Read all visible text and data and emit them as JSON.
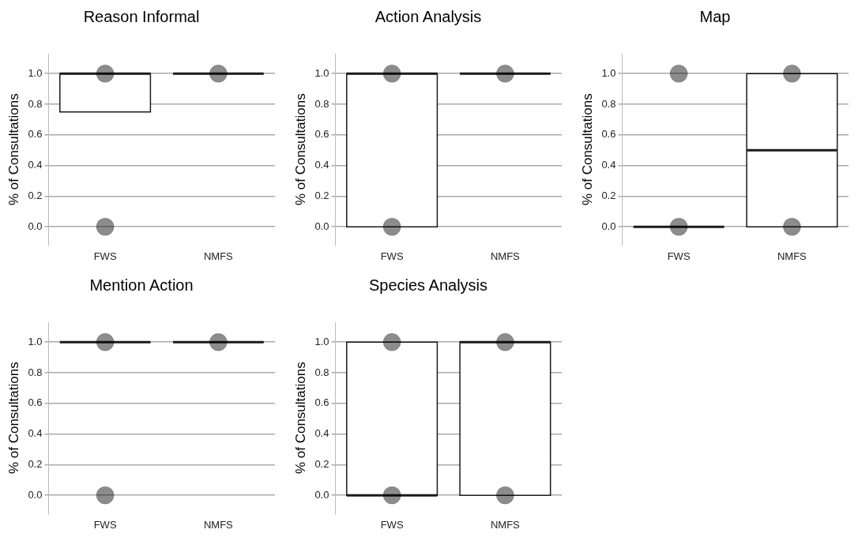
{
  "chart_data": [
    {
      "type": "box",
      "title": "Reason Informal",
      "ylabel": "% of Consultations",
      "categories": [
        "FWS",
        "NMFS"
      ],
      "ylim": [
        -0.12,
        1.13
      ],
      "yticks": [
        {
          "value": 0,
          "label": "0.0"
        },
        {
          "value": 0.2,
          "label": "0.2"
        },
        {
          "value": 0.4,
          "label": "0.4"
        },
        {
          "value": 0.6,
          "label": "0.6"
        },
        {
          "value": 0.8,
          "label": "0.8"
        },
        {
          "value": 1,
          "label": "1.0"
        }
      ],
      "grid": "y",
      "series": [
        {
          "type": "box",
          "colors": [
            "#ffffff",
            "#1a1a1a"
          ],
          "boxes": [
            {
              "low": 0.75,
              "q1": 0.75,
              "median": 1,
              "q3": 1,
              "high": 1
            },
            {
              "low": 1,
              "q1": 1,
              "median": 1,
              "q3": 1,
              "high": 1
            }
          ]
        },
        {
          "type": "scatter",
          "color": "#000000",
          "x": [
            "FWS",
            "FWS",
            "NMFS"
          ],
          "values": [
            1,
            0,
            1
          ]
        }
      ]
    },
    {
      "type": "box",
      "title": "Action Analysis",
      "ylabel": "% of Consultations",
      "categories": [
        "FWS",
        "NMFS"
      ],
      "ylim": [
        -0.12,
        1.13
      ],
      "yticks": [
        {
          "value": 0,
          "label": "0.0"
        },
        {
          "value": 0.2,
          "label": "0.2"
        },
        {
          "value": 0.4,
          "label": "0.4"
        },
        {
          "value": 0.6,
          "label": "0.6"
        },
        {
          "value": 0.8,
          "label": "0.8"
        },
        {
          "value": 1,
          "label": "1.0"
        }
      ],
      "grid": "y",
      "series": [
        {
          "type": "box",
          "colors": [
            "#ffffff",
            "#1a1a1a"
          ],
          "boxes": [
            {
              "low": 0,
              "q1": 0,
              "median": 1,
              "q3": 1,
              "high": 1
            },
            {
              "low": 1,
              "q1": 1,
              "median": 1,
              "q3": 1,
              "high": 1
            }
          ]
        },
        {
          "type": "scatter",
          "color": "#000000",
          "x": [
            "FWS",
            "FWS",
            "NMFS"
          ],
          "values": [
            1,
            0,
            1
          ]
        }
      ]
    },
    {
      "type": "box",
      "title": "Map",
      "ylabel": "% of Consultations",
      "categories": [
        "FWS",
        "NMFS"
      ],
      "ylim": [
        -0.12,
        1.13
      ],
      "yticks": [
        {
          "value": 0,
          "label": "0.0"
        },
        {
          "value": 0.2,
          "label": "0.2"
        },
        {
          "value": 0.4,
          "label": "0.4"
        },
        {
          "value": 0.6,
          "label": "0.6"
        },
        {
          "value": 0.8,
          "label": "0.8"
        },
        {
          "value": 1,
          "label": "1.0"
        }
      ],
      "grid": "y",
      "series": [
        {
          "type": "box",
          "colors": [
            "#1a1a1a",
            "#ffffff"
          ],
          "boxes": [
            {
              "low": 0,
              "q1": 0,
              "median": 0,
              "q3": 0,
              "high": 0
            },
            {
              "low": 0,
              "q1": 0,
              "median": 0.5,
              "q3": 1,
              "high": 1
            }
          ]
        },
        {
          "type": "scatter",
          "color": "#000000",
          "x": [
            "FWS",
            "FWS",
            "NMFS",
            "NMFS"
          ],
          "values": [
            1,
            0,
            1,
            0
          ]
        }
      ]
    },
    {
      "type": "box",
      "title": "Mention Action",
      "ylabel": "% of Consultations",
      "categories": [
        "FWS",
        "NMFS"
      ],
      "ylim": [
        -0.12,
        1.13
      ],
      "yticks": [
        {
          "value": 0,
          "label": "0.0"
        },
        {
          "value": 0.2,
          "label": "0.2"
        },
        {
          "value": 0.4,
          "label": "0.4"
        },
        {
          "value": 0.6,
          "label": "0.6"
        },
        {
          "value": 0.8,
          "label": "0.8"
        },
        {
          "value": 1,
          "label": "1.0"
        }
      ],
      "grid": "y",
      "series": [
        {
          "type": "box",
          "colors": [
            "#1a1a1a",
            "#1a1a1a"
          ],
          "boxes": [
            {
              "low": 1,
              "q1": 1,
              "median": 1,
              "q3": 1,
              "high": 1
            },
            {
              "low": 1,
              "q1": 1,
              "median": 1,
              "q3": 1,
              "high": 1
            }
          ]
        },
        {
          "type": "scatter",
          "color": "#000000",
          "x": [
            "FWS",
            "FWS",
            "NMFS"
          ],
          "values": [
            1,
            0,
            1
          ]
        }
      ]
    },
    {
      "type": "box",
      "title": "Species Analysis",
      "ylabel": "% of Consultations",
      "categories": [
        "FWS",
        "NMFS"
      ],
      "ylim": [
        -0.12,
        1.13
      ],
      "yticks": [
        {
          "value": 0,
          "label": "0.0"
        },
        {
          "value": 0.2,
          "label": "0.2"
        },
        {
          "value": 0.4,
          "label": "0.4"
        },
        {
          "value": 0.6,
          "label": "0.6"
        },
        {
          "value": 0.8,
          "label": "0.8"
        },
        {
          "value": 1,
          "label": "1.0"
        }
      ],
      "grid": "y",
      "series": [
        {
          "type": "box",
          "colors": [
            "#ffffff",
            "#ffffff"
          ],
          "boxes": [
            {
              "low": 0,
              "q1": 0,
              "median": 0,
              "q3": 1,
              "high": 1
            },
            {
              "low": 0,
              "q1": 0,
              "median": 1,
              "q3": 1,
              "high": 1
            }
          ]
        },
        {
          "type": "scatter",
          "color": "#000000",
          "x": [
            "FWS",
            "FWS",
            "NMFS",
            "NMFS"
          ],
          "values": [
            1,
            0,
            1,
            0
          ]
        }
      ]
    }
  ]
}
